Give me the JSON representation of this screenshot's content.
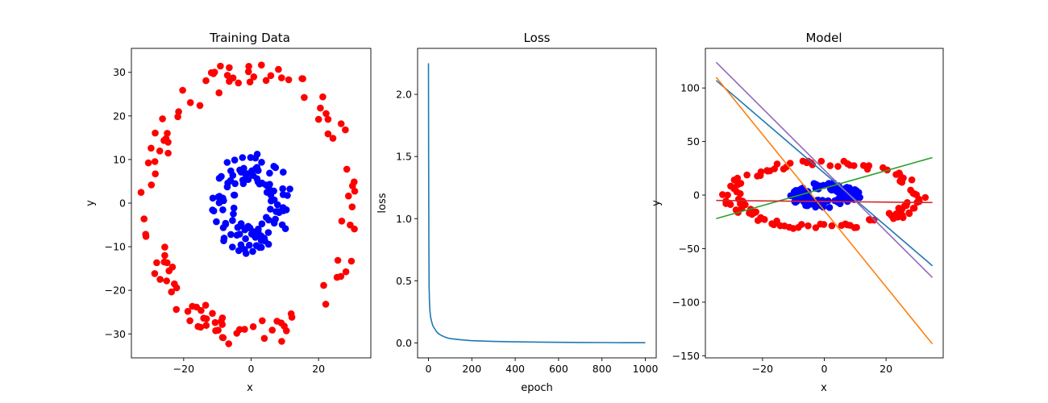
{
  "chart_data": [
    {
      "type": "scatter",
      "title": "Training Data",
      "xlabel": "x",
      "ylabel": "y",
      "xlim": [
        -35.5,
        35.5
      ],
      "ylim": [
        -35.5,
        35.5
      ],
      "xticks": [
        -20,
        0,
        20
      ],
      "yticks": [
        -30,
        -20,
        -10,
        0,
        10,
        20,
        30
      ],
      "series": [
        {
          "color": "#ff0000",
          "shape": "ring",
          "radius_min": 27,
          "radius_max": 33,
          "count": 120
        },
        {
          "color": "#0000ff",
          "shape": "ring",
          "radius_min": 5,
          "radius_max": 12,
          "count": 120
        }
      ]
    },
    {
      "type": "line",
      "title": "Loss",
      "xlabel": "epoch",
      "ylabel": "loss",
      "xlim": [
        -50,
        1050
      ],
      "ylim": [
        -0.12,
        2.37
      ],
      "xticks": [
        0,
        200,
        400,
        600,
        800,
        1000
      ],
      "yticks": [
        0.0,
        0.5,
        1.0,
        1.5,
        2.0
      ],
      "xtick_labels": [
        "0",
        "200",
        "400",
        "600",
        "800",
        "1000"
      ],
      "ytick_labels": [
        "0.0",
        "0.5",
        "1.0",
        "1.5",
        "2.0"
      ],
      "series": [
        {
          "color": "#1f77b4",
          "x": [
            0,
            1,
            2,
            3,
            5,
            7,
            10,
            15,
            20,
            30,
            40,
            50,
            60,
            80,
            100,
            150,
            200,
            300,
            400,
            500,
            600,
            700,
            800,
            900,
            1000
          ],
          "y": [
            2.25,
            1.5,
            0.8,
            0.45,
            0.32,
            0.26,
            0.21,
            0.17,
            0.14,
            0.11,
            0.085,
            0.07,
            0.06,
            0.045,
            0.035,
            0.025,
            0.018,
            0.012,
            0.009,
            0.007,
            0.005,
            0.004,
            0.003,
            0.002,
            0.002
          ]
        }
      ]
    },
    {
      "type": "scatter",
      "title": "Model",
      "xlabel": "x",
      "ylabel": "y",
      "xlim": [
        -38.5,
        38.5
      ],
      "ylim": [
        -152,
        137
      ],
      "xticks": [
        -20,
        0,
        20
      ],
      "yticks": [
        -150,
        -100,
        -50,
        0,
        50,
        100
      ],
      "series": [
        {
          "color": "#ff0000",
          "shape": "ring",
          "radius_min": 27,
          "radius_max": 33,
          "count": 120
        },
        {
          "color": "#0000ff",
          "shape": "ring",
          "radius_min": 5,
          "radius_max": 12,
          "count": 120
        }
      ],
      "lines": [
        {
          "color": "#1f77b4",
          "x": [
            -35,
            35
          ],
          "y": [
            107,
            -66
          ]
        },
        {
          "color": "#ff7f0e",
          "x": [
            -35,
            35
          ],
          "y": [
            110,
            -139
          ]
        },
        {
          "color": "#2ca02c",
          "x": [
            -35,
            35
          ],
          "y": [
            -22,
            35
          ]
        },
        {
          "color": "#d62728",
          "x": [
            -35,
            35
          ],
          "y": [
            -5,
            -7
          ]
        },
        {
          "color": "#9467bd",
          "x": [
            -35,
            35
          ],
          "y": [
            124,
            -77
          ]
        }
      ]
    }
  ]
}
